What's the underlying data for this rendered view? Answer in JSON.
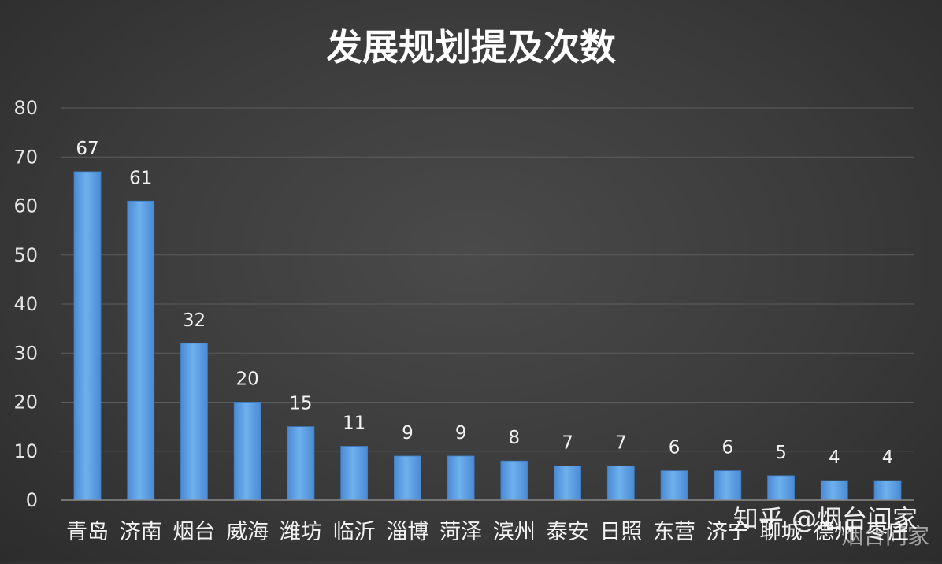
{
  "chart_data": {
    "type": "bar",
    "title": "发展规划提及次数",
    "categories": [
      "青岛",
      "济南",
      "烟台",
      "威海",
      "潍坊",
      "临沂",
      "淄博",
      "菏泽",
      "滨州",
      "泰安",
      "日照",
      "东营",
      "济宁",
      "聊城",
      "德州",
      "枣庄"
    ],
    "values": [
      67,
      61,
      32,
      20,
      15,
      11,
      9,
      9,
      8,
      7,
      7,
      6,
      6,
      5,
      4,
      4
    ],
    "ylim": [
      0,
      80
    ],
    "yticks": [
      0,
      10,
      20,
      30,
      40,
      50,
      60,
      70,
      80
    ],
    "xlabel": "",
    "ylabel": "",
    "grid": true,
    "bar_color": "#5a9ee0",
    "background": "#3b3b3b"
  },
  "watermark": {
    "text": "知乎 @烟台问家",
    "sub_text": "烟台问家"
  }
}
